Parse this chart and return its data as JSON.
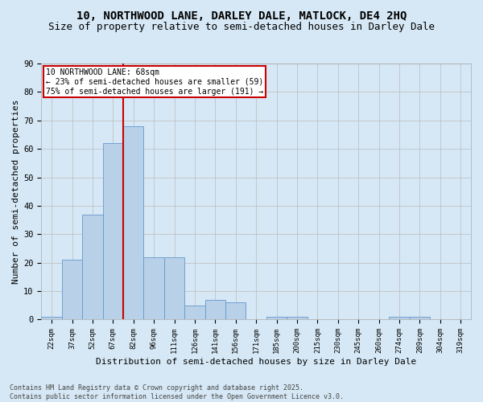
{
  "title": "10, NORTHWOOD LANE, DARLEY DALE, MATLOCK, DE4 2HQ",
  "subtitle": "Size of property relative to semi-detached houses in Darley Dale",
  "xlabel": "Distribution of semi-detached houses by size in Darley Dale",
  "ylabel": "Number of semi-detached properties",
  "bin_labels": [
    "22sqm",
    "37sqm",
    "52sqm",
    "67sqm",
    "82sqm",
    "96sqm",
    "111sqm",
    "126sqm",
    "141sqm",
    "156sqm",
    "171sqm",
    "185sqm",
    "200sqm",
    "215sqm",
    "230sqm",
    "245sqm",
    "260sqm",
    "274sqm",
    "289sqm",
    "304sqm",
    "319sqm"
  ],
  "bin_values": [
    1,
    21,
    37,
    62,
    68,
    22,
    22,
    5,
    7,
    6,
    0,
    1,
    1,
    0,
    0,
    0,
    0,
    1,
    1,
    0,
    0
  ],
  "bar_color": "#b8d0e8",
  "bar_edge_color": "#6699cc",
  "grid_color": "#bbbbbb",
  "background_color": "#d6e8f5",
  "property_line_color": "#cc0000",
  "annotation_text": "10 NORTHWOOD LANE: 68sqm\n← 23% of semi-detached houses are smaller (59)\n75% of semi-detached houses are larger (191) →",
  "annotation_box_color": "#ffffff",
  "annotation_box_edge": "#cc0000",
  "footnote": "Contains HM Land Registry data © Crown copyright and database right 2025.\nContains public sector information licensed under the Open Government Licence v3.0.",
  "ylim": [
    0,
    90
  ],
  "yticks": [
    0,
    10,
    20,
    30,
    40,
    50,
    60,
    70,
    80,
    90
  ],
  "title_fontsize": 10,
  "subtitle_fontsize": 9,
  "label_fontsize": 8,
  "tick_fontsize": 6.5,
  "annotation_fontsize": 7,
  "footnote_fontsize": 6
}
